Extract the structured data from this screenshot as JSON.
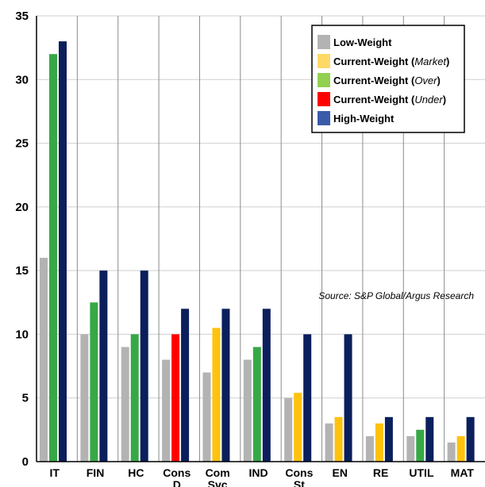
{
  "chart_data": {
    "type": "bar",
    "categories": [
      [
        "IT"
      ],
      [
        "FIN"
      ],
      [
        "HC"
      ],
      [
        "Cons",
        "D"
      ],
      [
        "Com",
        "Svc"
      ],
      [
        "IND"
      ],
      [
        "Cons",
        "St"
      ],
      [
        "EN"
      ],
      [
        "RE"
      ],
      [
        "UTIL"
      ],
      [
        "MAT"
      ]
    ],
    "series": [
      {
        "name": "Low-Weight",
        "values": [
          16,
          10,
          9,
          8,
          7,
          8,
          5,
          3,
          2,
          2,
          1.5
        ]
      },
      {
        "name": "Current-Weight",
        "values": [
          32,
          12.5,
          10,
          10,
          10.5,
          9,
          5.4,
          3.5,
          3,
          2.5,
          2
        ]
      },
      {
        "name": "High-Weight",
        "values": [
          33,
          15,
          15,
          12,
          12,
          12,
          10,
          10,
          3.5,
          3.5,
          3.5
        ]
      }
    ],
    "current_weight_status": [
      "over",
      "over",
      "over",
      "under",
      "market",
      "over",
      "market",
      "market",
      "market",
      "over",
      "market"
    ],
    "ylim": [
      0,
      35
    ],
    "yticks": [
      0,
      5,
      10,
      15,
      20,
      25,
      30,
      35
    ],
    "grid": "horizontal and vertical",
    "annotation": "Source: S&P Global/Argus Research",
    "colors": {
      "low": "#b3b3b3",
      "market": "#ffc20e",
      "over": "#37a846",
      "under": "#ff0000",
      "high": "#0a1f5c",
      "legend_high": "#3a5ba8",
      "legend_market": "#ffd966",
      "legend_over": "#92d050"
    },
    "legend": {
      "placement": "top-right",
      "entries": [
        {
          "parts": [
            {
              "text": "Low-Weight",
              "italic": false
            }
          ],
          "color_key": "low"
        },
        {
          "parts": [
            {
              "text": "Current-Weight (",
              "italic": false
            },
            {
              "text": "Market",
              "italic": true
            },
            {
              "text": ")",
              "italic": false
            }
          ],
          "color_key": "legend_market"
        },
        {
          "parts": [
            {
              "text": "Current-Weight (",
              "italic": false
            },
            {
              "text": "Over",
              "italic": true
            },
            {
              "text": ")",
              "italic": false
            }
          ],
          "color_key": "legend_over"
        },
        {
          "parts": [
            {
              "text": "Current-Weight (",
              "italic": false
            },
            {
              "text": "Under",
              "italic": true
            },
            {
              "text": ")",
              "italic": false
            }
          ],
          "color_key": "under"
        },
        {
          "parts": [
            {
              "text": "High-Weight",
              "italic": false
            }
          ],
          "color_key": "legend_high"
        }
      ]
    }
  }
}
